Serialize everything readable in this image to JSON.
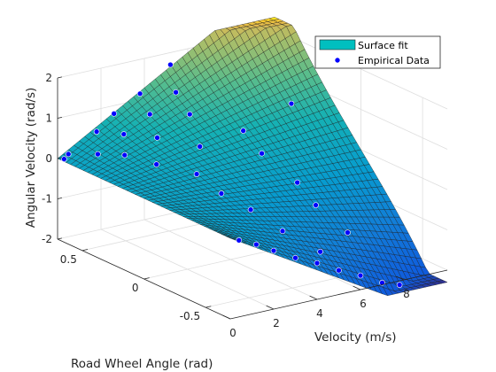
{
  "chart_data": {
    "type": "surface",
    "xlabel": "Velocity (m/s)",
    "ylabel": "Road Wheel Angle (rad)",
    "zlabel": "Angular Velocity (rad/s)",
    "x_ticks": [
      "0",
      "2",
      "4",
      "6",
      "8"
    ],
    "y_ticks": [
      "-0.5",
      "0",
      "0.5"
    ],
    "z_ticks": [
      "-2",
      "-1",
      "0",
      "1",
      "2"
    ],
    "xlim": [
      0,
      10
    ],
    "ylim": [
      -0.7,
      0.7
    ],
    "zlim": [
      -2,
      2
    ],
    "grid": true,
    "colormap": "parula",
    "legend_position": "top-right",
    "legend": [
      "Surface fit",
      "Empirical Data"
    ],
    "surface_model": "angular_velocity = velocity * tan(road_wheel_angle) / 2.65",
    "surface_color": "#00bfbf",
    "marker_color": "#0000ff",
    "empirical_data": [
      {
        "velocity": 0.3,
        "angle": 0.7,
        "angular_velocity": -0.05
      },
      {
        "velocity": 0.5,
        "angle": 0.7,
        "angular_velocity": 0.05
      },
      {
        "velocity": 1.8,
        "angle": 0.7,
        "angular_velocity": 0.45
      },
      {
        "velocity": 2.6,
        "angle": 0.7,
        "angular_velocity": 0.8
      },
      {
        "velocity": 3.8,
        "angle": 0.7,
        "angular_velocity": 1.15
      },
      {
        "velocity": 5.2,
        "angle": 0.7,
        "angular_velocity": 1.7
      },
      {
        "velocity": 1.0,
        "angle": 0.55,
        "angular_velocity": 0.2
      },
      {
        "velocity": 2.2,
        "angle": 0.55,
        "angular_velocity": 0.55
      },
      {
        "velocity": 3.4,
        "angle": 0.55,
        "angular_velocity": 0.9
      },
      {
        "velocity": 4.6,
        "angle": 0.55,
        "angular_velocity": 1.3
      },
      {
        "velocity": 1.5,
        "angle": 0.42,
        "angular_velocity": 0.3
      },
      {
        "velocity": 3.0,
        "angle": 0.42,
        "angular_velocity": 0.55
      },
      {
        "velocity": 4.5,
        "angle": 0.42,
        "angular_velocity": 0.95
      },
      {
        "velocity": 2.0,
        "angle": 0.25,
        "angular_velocity": 0.25
      },
      {
        "velocity": 4.0,
        "angle": 0.25,
        "angular_velocity": 0.45
      },
      {
        "velocity": 6.0,
        "angle": 0.25,
        "angular_velocity": 0.6
      },
      {
        "velocity": 3.0,
        "angle": 0.1,
        "angular_velocity": 0.1
      },
      {
        "velocity": 6.0,
        "angle": 0.1,
        "angular_velocity": 0.25
      },
      {
        "velocity": 3.0,
        "angle": -0.1,
        "angular_velocity": -0.1
      },
      {
        "velocity": 6.5,
        "angle": -0.1,
        "angular_velocity": -0.25
      },
      {
        "velocity": 3.5,
        "angle": -0.25,
        "angular_velocity": -0.35
      },
      {
        "velocity": 6.5,
        "angle": -0.25,
        "angular_velocity": -0.6
      },
      {
        "velocity": 4.0,
        "angle": -0.42,
        "angular_velocity": -0.7
      },
      {
        "velocity": 7.0,
        "angle": -0.42,
        "angular_velocity": -1.1
      },
      {
        "velocity": 0.4,
        "angle": -0.7,
        "angular_velocity": -0.1
      },
      {
        "velocity": 1.2,
        "angle": -0.7,
        "angular_velocity": -0.3
      },
      {
        "velocity": 2.0,
        "angle": -0.7,
        "angular_velocity": -0.55
      },
      {
        "velocity": 3.0,
        "angle": -0.7,
        "angular_velocity": -0.85
      },
      {
        "velocity": 4.0,
        "angle": -0.7,
        "angular_velocity": -1.1
      },
      {
        "velocity": 5.0,
        "angle": -0.7,
        "angular_velocity": -1.4
      },
      {
        "velocity": 6.0,
        "angle": -0.7,
        "angular_velocity": -1.65
      },
      {
        "velocity": 7.0,
        "angle": -0.7,
        "angular_velocity": -1.95
      },
      {
        "velocity": 7.8,
        "angle": -0.7,
        "angular_velocity": -2.1
      },
      {
        "velocity": 5.0,
        "angle": -0.55,
        "angular_velocity": -1.15
      },
      {
        "velocity": 8.5,
        "angle": 0.3,
        "angular_velocity": 0.9
      }
    ]
  }
}
